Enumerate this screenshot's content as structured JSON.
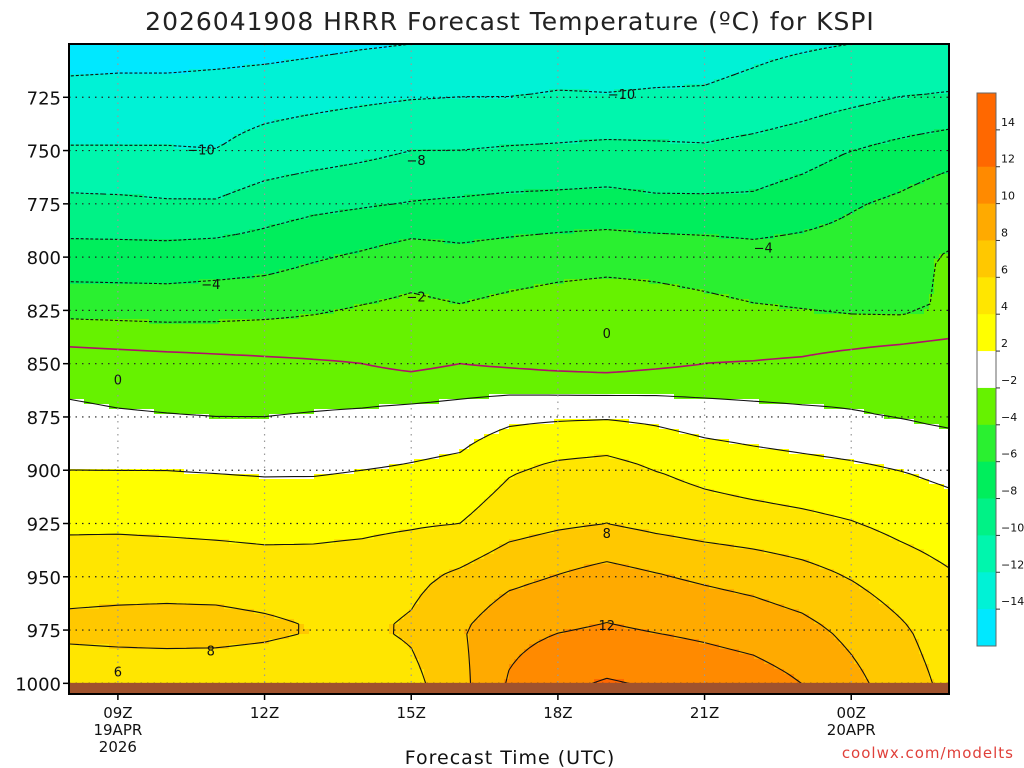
{
  "chart_data": {
    "type": "contour",
    "title": "2026041908 HRRR Forecast Temperature (ºC) for KSPI",
    "xlabel": "Forecast Time (UTC)",
    "ylabel": "",
    "credit": "coolwx.com/modelts",
    "x_range_hours": [
      8,
      26
    ],
    "y_range_hpa": [
      700,
      1005
    ],
    "y_ticks": [
      {
        "value": 725,
        "label": "725"
      },
      {
        "value": 750,
        "label": "750"
      },
      {
        "value": 775,
        "label": "775"
      },
      {
        "value": 800,
        "label": "800"
      },
      {
        "value": 825,
        "label": "825"
      },
      {
        "value": 850,
        "label": "850"
      },
      {
        "value": 875,
        "label": "875"
      },
      {
        "value": 900,
        "label": "900"
      },
      {
        "value": 925,
        "label": "925"
      },
      {
        "value": 950,
        "label": "950"
      },
      {
        "value": 975,
        "label": "975"
      },
      {
        "value": 1000,
        "label": "1000"
      }
    ],
    "x_ticks": [
      {
        "value": 9,
        "label": "09Z",
        "date": "19APR",
        "year": "2026"
      },
      {
        "value": 12,
        "label": "12Z"
      },
      {
        "value": 15,
        "label": "15Z"
      },
      {
        "value": 18,
        "label": "18Z"
      },
      {
        "value": 21,
        "label": "21Z"
      },
      {
        "value": 24,
        "label": "00Z",
        "date": "20APR"
      }
    ],
    "grid": true,
    "colorbar": {
      "bounds": [
        -16,
        -14,
        -12,
        -10,
        -8,
        -6,
        -4,
        -2,
        2,
        4,
        6,
        8,
        10,
        12,
        14,
        16
      ],
      "colors": [
        "#17b2f5",
        "#00e8ff",
        "#00f2d6",
        "#00f6ad",
        "#00f286",
        "#00ee5c",
        "#2af030",
        "#66f200",
        "#ffffff",
        "#ffff00",
        "#ffe600",
        "#ffc800",
        "#ffaa00",
        "#ff8a00",
        "#ff6800",
        "#a0522d"
      ],
      "tick_labels": [
        "14",
        "12",
        "10",
        "8",
        "6",
        "4",
        "2",
        "−2",
        "−4",
        "−6",
        "−8",
        "−10",
        "−12",
        "−14"
      ]
    },
    "grid_x": [
      8,
      9,
      10,
      11,
      12,
      13,
      14,
      15,
      16,
      17,
      18,
      19,
      20,
      21,
      22,
      23,
      24,
      25,
      26
    ],
    "grid_p": [
      700,
      725,
      750,
      775,
      800,
      825,
      850,
      875,
      900,
      925,
      950,
      975,
      1000
    ],
    "temperature": [
      [
        -13.5,
        -13.2,
        -13.2,
        -13.0,
        -12.8,
        -12.5,
        -12.2,
        -12.0,
        -11.6,
        -11.5,
        -11.3,
        -11.0,
        -10.9,
        -10.7,
        -10.4,
        -10.2,
        -10.0,
        -9.8,
        -9.6
      ],
      [
        -11.0,
        -11.0,
        -11.0,
        -10.9,
        -10.7,
        -10.5,
        -10.3,
        -10.1,
        -10.0,
        -10.0,
        -9.8,
        -9.9,
        -9.8,
        -9.8,
        -9.5,
        -9.0,
        -8.5,
        -8.0,
        -7.8
      ],
      [
        -9.9,
        -9.9,
        -9.9,
        -10.0,
        -9.3,
        -8.9,
        -8.5,
        -8.0,
        -8.0,
        -7.8,
        -7.7,
        -7.5,
        -7.6,
        -7.7,
        -7.3,
        -6.8,
        -6.0,
        -5.4,
        -4.8
      ],
      [
        -7.5,
        -7.6,
        -7.8,
        -7.8,
        -7.0,
        -6.5,
        -6.2,
        -5.9,
        -5.7,
        -5.5,
        -5.4,
        -5.3,
        -5.6,
        -5.6,
        -5.6,
        -5.0,
        -4.2,
        -3.6,
        -2.7
      ],
      [
        -5.2,
        -5.2,
        -5.2,
        -5.0,
        -4.8,
        -4.2,
        -3.7,
        -3.0,
        -3.4,
        -3.1,
        -2.8,
        -2.6,
        -2.7,
        -2.9,
        -3.2,
        -3.1,
        -3.0,
        -2.3,
        -1.9
      ],
      [
        -2.6,
        -2.7,
        -2.8,
        -2.7,
        -2.5,
        -2.2,
        -1.8,
        -1.5,
        -1.8,
        -1.4,
        -1.1,
        -1.0,
        -1.2,
        -1.5,
        -1.8,
        -2.0,
        -2.2,
        -2.3,
        -1.8
      ],
      [
        1.2,
        1.0,
        0.8,
        0.6,
        0.4,
        0.2,
        0.0,
        -0.5,
        0.0,
        -0.3,
        -0.6,
        -0.8,
        -0.4,
        0.0,
        0.1,
        0.3,
        0.8,
        1.3,
        1.6
      ],
      [
        2.4,
        2.2,
        2.1,
        2.0,
        2.0,
        2.2,
        2.4,
        2.8,
        3.0,
        3.6,
        3.8,
        3.9,
        3.6,
        3.1,
        2.8,
        2.5,
        2.2,
        1.9,
        1.6
      ],
      [
        4.0,
        4.0,
        4.0,
        3.9,
        3.8,
        3.8,
        4.0,
        4.2,
        4.5,
        5.8,
        6.5,
        6.8,
        6.0,
        5.4,
        5.0,
        4.7,
        4.4,
        4.0,
        3.5
      ],
      [
        5.7,
        5.7,
        5.6,
        5.5,
        5.4,
        5.5,
        5.6,
        5.8,
        6.0,
        7.2,
        7.7,
        8.0,
        7.5,
        7.1,
        6.8,
        6.5,
        6.1,
        5.5,
        5.0
      ],
      [
        7.1,
        7.2,
        7.2,
        7.1,
        6.9,
        6.8,
        7.0,
        7.5,
        8.4,
        9.5,
        10.1,
        10.8,
        10.2,
        9.7,
        9.3,
        8.7,
        7.9,
        7.0,
        6.2
      ],
      [
        8.6,
        8.7,
        8.8,
        8.8,
        8.5,
        8.0,
        7.7,
        8.3,
        9.8,
        11.4,
        11.9,
        12.2,
        11.9,
        11.6,
        11.2,
        10.6,
        9.5,
        8.3,
        7.0
      ],
      [
        6.3,
        6.5,
        6.5,
        6.4,
        6.3,
        6.0,
        6.2,
        7.4,
        9.4,
        12.2,
        13.6,
        14.2,
        13.8,
        13.3,
        12.9,
        12.0,
        10.6,
        9.0,
        7.5
      ]
    ],
    "contour_levels": [
      -12,
      -10,
      -8,
      -6,
      -4,
      -2,
      0,
      2,
      4,
      6,
      8,
      10,
      12,
      14
    ],
    "contour_labels": [
      {
        "text": "−10",
        "x": 19.3,
        "p": 724
      },
      {
        "text": "−10",
        "x": 10.7,
        "p": 750
      },
      {
        "text": "−8",
        "x": 15.1,
        "p": 755
      },
      {
        "text": "−4",
        "x": 10.9,
        "p": 813
      },
      {
        "text": "−4",
        "x": 22.2,
        "p": 796
      },
      {
        "text": "−2",
        "x": 15.1,
        "p": 819
      },
      {
        "text": "0",
        "x": 19.0,
        "p": 836
      },
      {
        "text": "0",
        "x": 9.0,
        "p": 858
      },
      {
        "text": "8",
        "x": 19.0,
        "p": 930
      },
      {
        "text": "12",
        "x": 19.0,
        "p": 973
      },
      {
        "text": "8",
        "x": 10.9,
        "p": 985
      },
      {
        "text": "6",
        "x": 9.0,
        "p": 995
      }
    ],
    "ground_color": "#a0522d"
  }
}
